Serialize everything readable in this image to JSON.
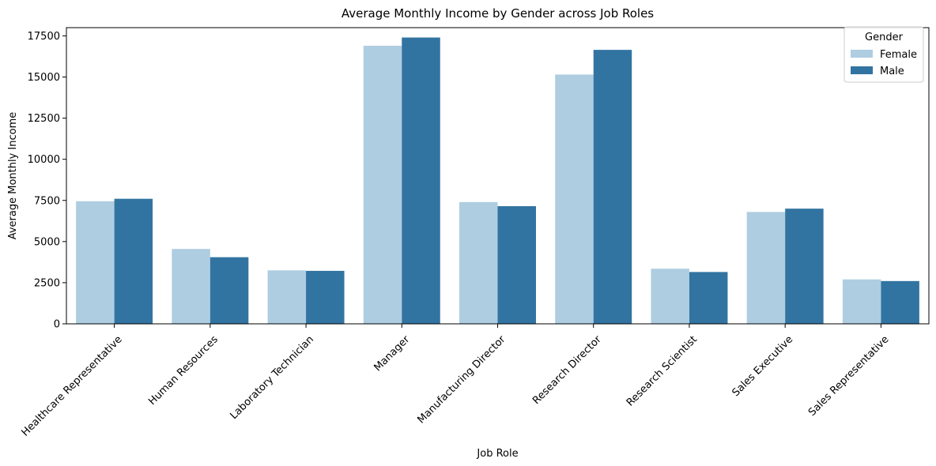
{
  "chart_data": {
    "type": "bar",
    "title": "Average Monthly Income by Gender across Job Roles",
    "xlabel": "Job Role",
    "ylabel": "Average Monthly Income",
    "categories": [
      "Healthcare Representative",
      "Human Resources",
      "Laboratory Technician",
      "Manager",
      "Manufacturing Director",
      "Research Director",
      "Research Scientist",
      "Sales Executive",
      "Sales Representative"
    ],
    "series": [
      {
        "name": "Female",
        "color": "#aecde1",
        "values": [
          7450,
          4550,
          3250,
          16900,
          7400,
          15150,
          3350,
          6800,
          2700
        ]
      },
      {
        "name": "Male",
        "color": "#3274a1",
        "values": [
          7600,
          4050,
          3220,
          17400,
          7150,
          16650,
          3150,
          7000,
          2600
        ]
      }
    ],
    "ylim": [
      0,
      18000
    ],
    "yticks": [
      0,
      2500,
      5000,
      7500,
      10000,
      12500,
      15000,
      17500
    ],
    "ytick_labels": [
      "0",
      "2500",
      "5000",
      "7500",
      "10000",
      "12500",
      "15000",
      "17500"
    ],
    "legend": {
      "title": "Gender",
      "placement": "top-right"
    },
    "grid": false
  }
}
